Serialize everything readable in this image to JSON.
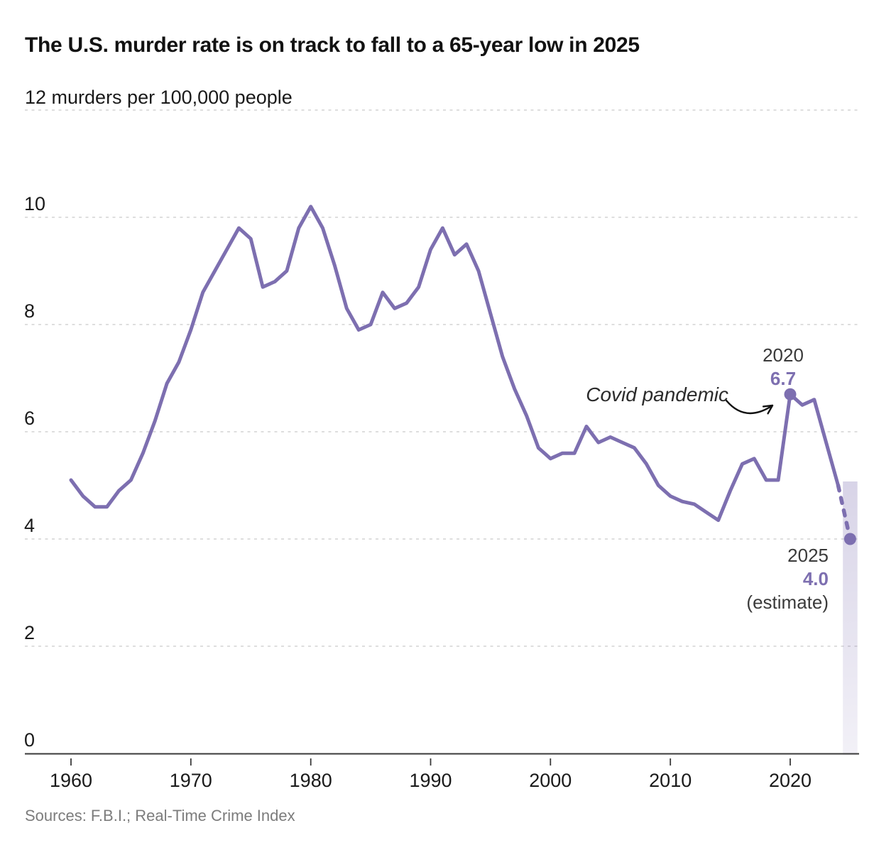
{
  "page": {
    "title": "The U.S. murder rate is on track to fall to a 65-year low in 2025",
    "subtitle": "12 murders per 100,000 people",
    "source": "Sources: F.B.I.; Real-Time Crime Index"
  },
  "annotations": {
    "covid_label": "Covid pandemic",
    "peak_year": "2020",
    "peak_value": "6.7",
    "end_year": "2025",
    "end_value": "4.0",
    "end_note": "(estimate)"
  },
  "chart_data": {
    "type": "line",
    "title": "The U.S. murder rate is on track to fall to a 65-year low in 2025",
    "ylabel": "12 murders per 100,000 people",
    "xlim": [
      1960,
      2025
    ],
    "ylim": [
      0,
      12
    ],
    "x_step": 1,
    "values": [
      5.1,
      4.8,
      4.6,
      4.6,
      4.9,
      5.1,
      5.6,
      6.2,
      6.9,
      7.3,
      7.9,
      8.6,
      9.0,
      9.4,
      9.8,
      9.6,
      8.7,
      8.8,
      9.0,
      9.8,
      10.2,
      9.8,
      9.1,
      8.3,
      7.9,
      8.0,
      8.6,
      8.3,
      8.4,
      8.7,
      9.4,
      9.8,
      9.3,
      9.5,
      9.0,
      8.2,
      7.4,
      6.8,
      6.3,
      5.7,
      5.5,
      5.6,
      5.6,
      6.1,
      5.8,
      5.9,
      5.8,
      5.7,
      5.4,
      5.0,
      4.8,
      4.7,
      4.65,
      4.5,
      4.35,
      4.9,
      5.4,
      5.5,
      5.1,
      5.1,
      6.7,
      6.5,
      6.6,
      5.8,
      5.0,
      4.0
    ],
    "solid_through_year": 2024,
    "estimate_segment": {
      "from_year": 2024,
      "to_year": 2025
    },
    "markers": [
      {
        "year": 2020,
        "value": 6.7
      },
      {
        "year": 2025,
        "value": 4.0
      }
    ],
    "x_ticks": [
      1960,
      1970,
      1980,
      1990,
      2000,
      2010,
      2020
    ],
    "y_ticks": [
      0,
      2,
      4,
      6,
      8,
      10
    ],
    "grid_lines": [
      2,
      4,
      6,
      8,
      10,
      12
    ],
    "grid_on": true,
    "colors": {
      "line": "#7d6fb0",
      "grid": "#cbcbcb",
      "axis": "#3a3a3a",
      "tick_text": "#1a1a1a",
      "band": "#7d6fb0",
      "arrow": "#111111"
    }
  }
}
